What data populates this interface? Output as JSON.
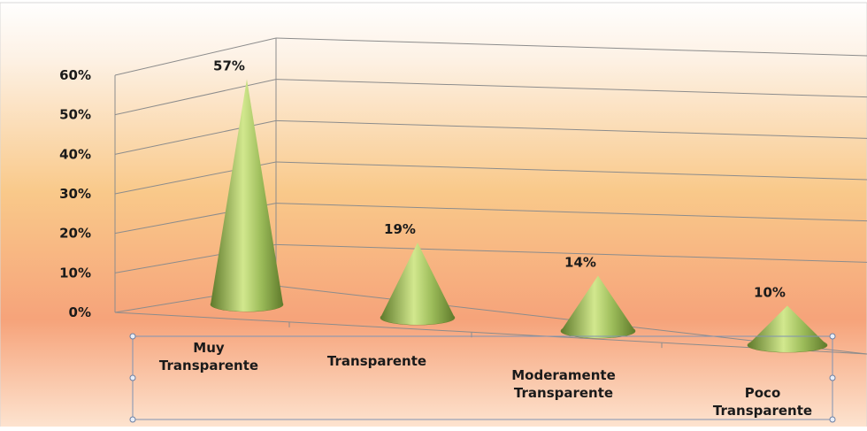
{
  "chart_data": {
    "type": "bar",
    "style": "3d-cone",
    "categories": [
      [
        "Muy",
        "Transparente"
      ],
      [
        "Transparente"
      ],
      [
        "Moderamente",
        "Transparente"
      ],
      [
        "Poco",
        "Transparente"
      ]
    ],
    "values": [
      57,
      19,
      14,
      10
    ],
    "data_labels": [
      "57%",
      "19%",
      "14%",
      "10%"
    ],
    "ylim": [
      0,
      60
    ],
    "yticks": [
      "0%",
      "10%",
      "20%",
      "30%",
      "40%",
      "50%",
      "60%"
    ],
    "grid": true,
    "legend": "none",
    "colors": {
      "cone_light": "#d2e88e",
      "cone_mid": "#9bbb59",
      "cone_dark": "#5f7a2b",
      "grid": "#8c8c8c",
      "bg_top": "#fdf1e4",
      "bg_mid": "#f9c98a",
      "bg_bottom": "#f6a37a"
    }
  }
}
